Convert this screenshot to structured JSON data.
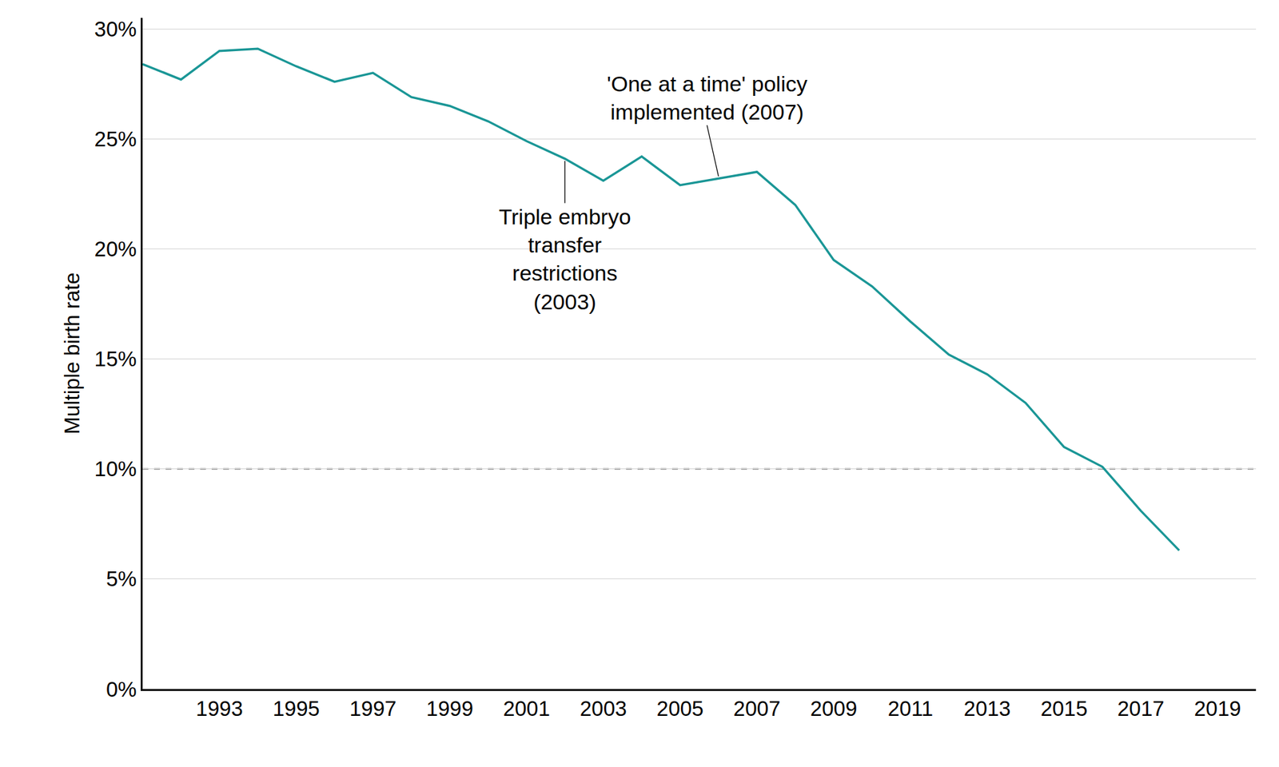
{
  "chart_data": {
    "type": "line",
    "y_label": "Multiple birth rate",
    "x": [
      1991,
      1992,
      1993,
      1994,
      1995,
      1996,
      1997,
      1998,
      1999,
      2000,
      2001,
      2002,
      2003,
      2004,
      2005,
      2006,
      2007,
      2008,
      2009,
      2010,
      2011,
      2012,
      2013,
      2014,
      2015,
      2016,
      2017,
      2018
    ],
    "values": [
      28.4,
      27.7,
      29.0,
      29.1,
      28.3,
      27.6,
      28.0,
      26.9,
      26.5,
      25.8,
      24.9,
      24.1,
      23.1,
      24.2,
      22.9,
      23.2,
      23.5,
      22.0,
      19.5,
      18.3,
      16.7,
      15.2,
      14.3,
      13.0,
      11.0,
      10.1,
      8.1,
      6.3
    ],
    "color": "#1a9696",
    "xlim": [
      1991,
      2020
    ],
    "xticks": [
      1993,
      1995,
      1997,
      1999,
      2001,
      2003,
      2005,
      2007,
      2009,
      2011,
      2013,
      2015,
      2017,
      2019
    ],
    "ylim": [
      0,
      30.5
    ],
    "yticks": [
      {
        "value": 0,
        "label": "0%"
      },
      {
        "value": 5,
        "label": "5%"
      },
      {
        "value": 10,
        "label": "10%"
      },
      {
        "value": 15,
        "label": "15%"
      },
      {
        "value": 20,
        "label": "20%"
      },
      {
        "value": 25,
        "label": "25%"
      },
      {
        "value": 30,
        "label": "30%"
      }
    ],
    "grid": true,
    "reference_lines": [
      {
        "value": 10,
        "line_style": "dashed",
        "color": "#999999"
      }
    ],
    "annotations": [
      {
        "lines": [
          "Triple embryo",
          "transfer",
          "restrictions",
          "(2003)"
        ],
        "x": 2002,
        "y": 24.0,
        "position": "below"
      },
      {
        "lines": [
          "'One at a time' policy",
          "implemented (2007)"
        ],
        "x": 2006,
        "y": 23.3,
        "position": "above"
      }
    ]
  }
}
